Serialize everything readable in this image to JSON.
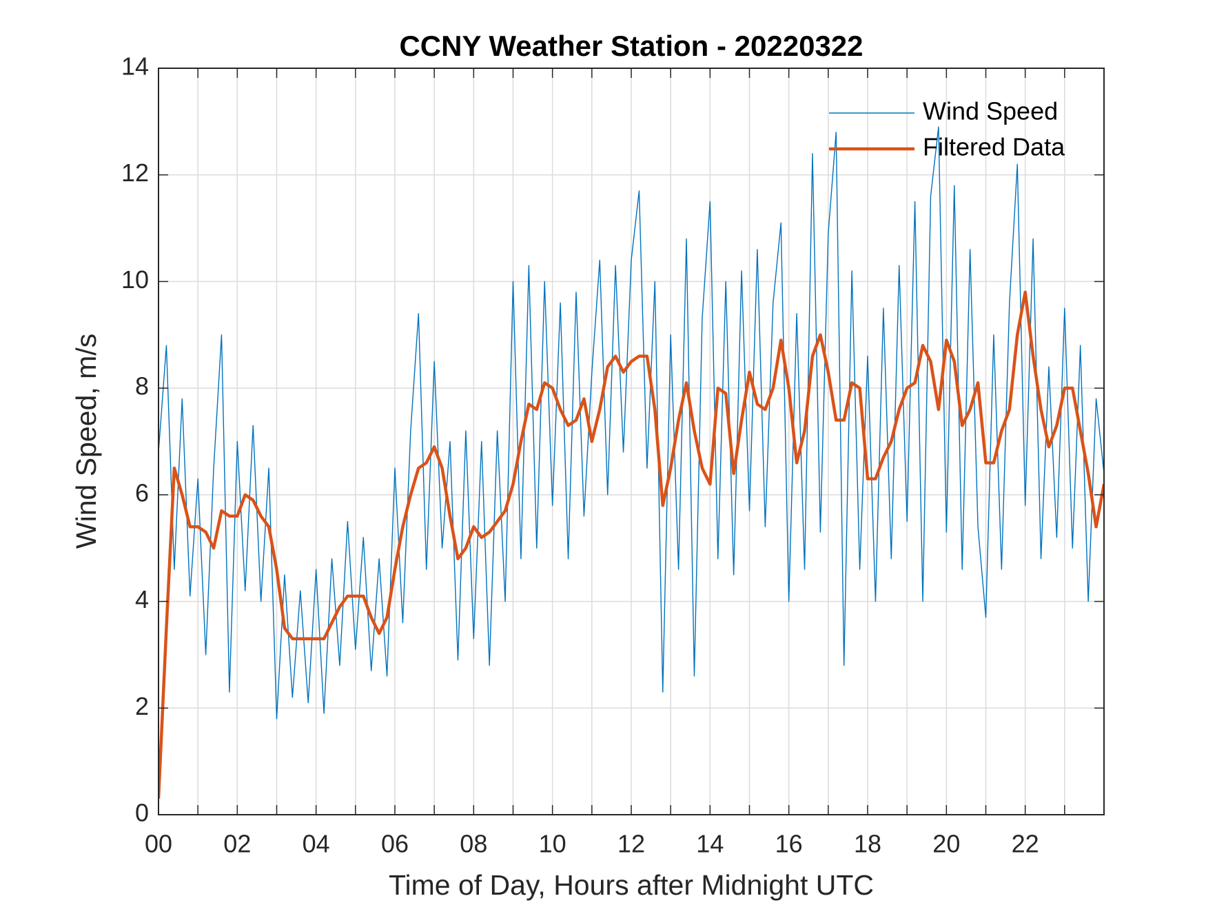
{
  "chart_data": {
    "type": "line",
    "title": "CCNY Weather Station - 20220322",
    "xlabel": "Time of Day, Hours after Midnight UTC",
    "ylabel": "Wind Speed, m/s",
    "x": [
      0,
      0.2,
      0.4,
      0.6,
      0.8,
      1,
      1.2,
      1.4,
      1.6,
      1.8,
      2,
      2.2,
      2.4,
      2.6,
      2.8,
      3,
      3.2,
      3.4,
      3.6,
      3.8,
      4,
      4.2,
      4.4,
      4.6,
      4.8,
      5,
      5.2,
      5.4,
      5.6,
      5.8,
      6,
      6.2,
      6.4,
      6.6,
      6.8,
      7,
      7.2,
      7.4,
      7.6,
      7.8,
      8,
      8.2,
      8.4,
      8.6,
      8.8,
      9,
      9.2,
      9.4,
      9.6,
      9.8,
      10,
      10.2,
      10.4,
      10.6,
      10.8,
      11,
      11.2,
      11.4,
      11.6,
      11.8,
      12,
      12.2,
      12.4,
      12.6,
      12.8,
      13,
      13.2,
      13.4,
      13.6,
      13.8,
      14,
      14.2,
      14.4,
      14.6,
      14.8,
      15,
      15.2,
      15.4,
      15.6,
      15.8,
      16,
      16.2,
      16.4,
      16.6,
      16.8,
      17,
      17.2,
      17.4,
      17.6,
      17.8,
      18,
      18.2,
      18.4,
      18.6,
      18.8,
      19,
      19.2,
      19.4,
      19.6,
      19.8,
      20,
      20.2,
      20.4,
      20.6,
      20.8,
      21,
      21.2,
      21.4,
      21.6,
      21.8,
      22,
      22.2,
      22.4,
      22.6,
      22.8,
      23,
      23.2,
      23.4,
      23.6,
      23.8,
      24
    ],
    "series": [
      {
        "name": "Wind Speed",
        "color": "#0072bd",
        "width": 1.4,
        "values": [
          6.8,
          8.8,
          4.6,
          7.8,
          4.1,
          6.3,
          3.0,
          6.5,
          9.0,
          2.3,
          7.0,
          4.2,
          7.3,
          4.0,
          6.5,
          1.8,
          4.5,
          2.2,
          4.2,
          2.1,
          4.6,
          1.9,
          4.8,
          2.8,
          5.5,
          3.1,
          5.2,
          2.7,
          4.8,
          2.6,
          6.5,
          3.6,
          7.2,
          9.4,
          4.6,
          8.5,
          5.0,
          7.0,
          2.9,
          7.2,
          3.3,
          7.0,
          2.8,
          7.2,
          4.0,
          10.0,
          4.8,
          10.3,
          5.0,
          10.0,
          5.8,
          9.6,
          4.8,
          9.8,
          5.6,
          8.3,
          10.4,
          6.0,
          10.3,
          6.8,
          10.4,
          11.7,
          6.5,
          10.0,
          2.3,
          9.0,
          4.6,
          10.8,
          2.6,
          9.3,
          11.5,
          4.8,
          10.0,
          4.5,
          10.2,
          5.7,
          10.6,
          5.4,
          9.6,
          11.1,
          4.0,
          9.4,
          4.6,
          12.4,
          5.3,
          10.9,
          12.8,
          2.8,
          10.2,
          4.6,
          8.6,
          4.0,
          9.5,
          4.8,
          10.3,
          5.5,
          11.5,
          4.0,
          11.6,
          12.9,
          5.3,
          11.8,
          4.6,
          10.6,
          5.4,
          3.7,
          9.0,
          4.6,
          9.6,
          12.2,
          5.8,
          10.8,
          4.8,
          8.4,
          5.2,
          9.5,
          5.0,
          8.8,
          4.0,
          7.8,
          6.4
        ]
      },
      {
        "name": "Filtered Data",
        "color": "#d95319",
        "width": 4.5,
        "values": [
          0.3,
          3.5,
          6.5,
          6.0,
          5.4,
          5.4,
          5.3,
          5.0,
          5.7,
          5.6,
          5.6,
          6.0,
          5.9,
          5.6,
          5.4,
          4.6,
          3.5,
          3.3,
          3.3,
          3.3,
          3.3,
          3.3,
          3.6,
          3.9,
          4.1,
          4.1,
          4.1,
          3.7,
          3.4,
          3.7,
          4.6,
          5.4,
          6.0,
          6.5,
          6.6,
          6.9,
          6.5,
          5.6,
          4.8,
          5.0,
          5.4,
          5.2,
          5.3,
          5.5,
          5.7,
          6.2,
          7.0,
          7.7,
          7.6,
          8.1,
          8.0,
          7.6,
          7.3,
          7.4,
          7.8,
          7.0,
          7.6,
          8.4,
          8.6,
          8.3,
          8.5,
          8.6,
          8.6,
          7.6,
          5.8,
          6.5,
          7.4,
          8.1,
          7.2,
          6.5,
          6.2,
          8.0,
          7.9,
          6.4,
          7.4,
          8.3,
          7.7,
          7.6,
          8.0,
          8.9,
          8.0,
          6.6,
          7.2,
          8.6,
          9.0,
          8.3,
          7.4,
          7.4,
          8.1,
          8.0,
          6.3,
          6.3,
          6.7,
          7.0,
          7.6,
          8.0,
          8.1,
          8.8,
          8.5,
          7.6,
          8.9,
          8.5,
          7.3,
          7.6,
          8.1,
          6.6,
          6.6,
          7.2,
          7.6,
          9.0,
          9.8,
          8.6,
          7.6,
          6.9,
          7.3,
          8.0,
          8.0,
          7.2,
          6.4,
          5.4,
          6.2
        ]
      }
    ],
    "xlim": [
      0,
      24
    ],
    "xticks": [
      {
        "value": 0,
        "label": "00"
      },
      {
        "value": 2,
        "label": "02"
      },
      {
        "value": 4,
        "label": "04"
      },
      {
        "value": 6,
        "label": "06"
      },
      {
        "value": 8,
        "label": "08"
      },
      {
        "value": 10,
        "label": "10"
      },
      {
        "value": 12,
        "label": "12"
      },
      {
        "value": 14,
        "label": "14"
      },
      {
        "value": 16,
        "label": "16"
      },
      {
        "value": 18,
        "label": "18"
      },
      {
        "value": 20,
        "label": "20"
      },
      {
        "value": 22,
        "label": "22"
      }
    ],
    "xminorticks": [
      1,
      3,
      5,
      7,
      9,
      11,
      13,
      15,
      17,
      19,
      21,
      23
    ],
    "ylim": [
      0,
      14
    ],
    "yticks": [
      0,
      2,
      4,
      6,
      8,
      10,
      12,
      14
    ],
    "grid": true,
    "legend": "top-right"
  }
}
